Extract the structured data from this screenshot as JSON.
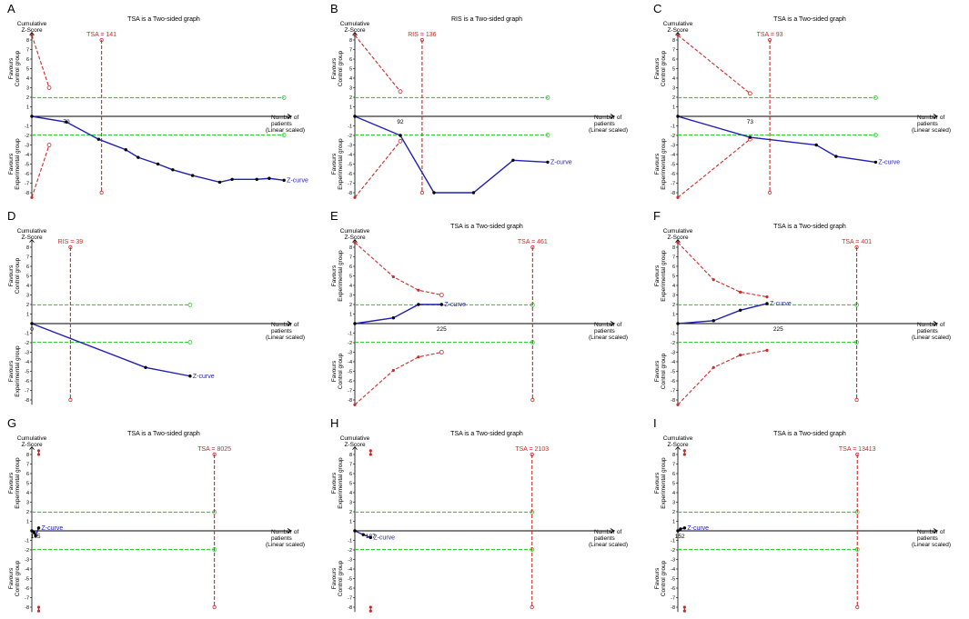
{
  "colors": {
    "axis": "#000000",
    "zcurve": "#1f1fb4",
    "boundary": "#cc2a2a",
    "threshold": "#2fcf2f",
    "label": "#000000",
    "zlabel": "#1f1fb4",
    "tsa_label": "#cc2a2a"
  },
  "common": {
    "y_axis_title_line1": "Cumulative",
    "y_axis_title_line2": "Z-Score",
    "x_axis_title_line1": "Number of",
    "x_axis_title_line2": "patients",
    "x_axis_title_line3": "(Linear scaled)",
    "zcurve_label": "Z-curve",
    "y_ticks": [
      "8",
      "7",
      "6",
      "5",
      "4",
      "3",
      "2",
      "1",
      "-1",
      "-2",
      "-3",
      "-4",
      "-5",
      "-6",
      "-7",
      "-8"
    ]
  },
  "chart_data": [
    {
      "panel": "A",
      "type": "line",
      "title": "TSA is a Two-sided graph",
      "upper_label": "Favours Control group",
      "lower_label": "Favours Experimental group",
      "x_max": 460,
      "x_tick": "70",
      "x_tick_value": 70,
      "boundary_value": 141,
      "boundary_label": "TSA = 141",
      "threshold": 1.96,
      "zcurve": [
        [
          0,
          0
        ],
        [
          70,
          -0.6
        ],
        [
          135,
          -2.4
        ],
        [
          190,
          -3.5
        ],
        [
          215,
          -4.3
        ],
        [
          255,
          -5.0
        ],
        [
          285,
          -5.6
        ],
        [
          325,
          -6.2
        ],
        [
          380,
          -6.9
        ],
        [
          405,
          -6.6
        ],
        [
          455,
          -6.6
        ],
        [
          480,
          -6.5
        ],
        [
          510,
          -6.7
        ]
      ],
      "z_end": [
        510,
        -6.7
      ],
      "upper_boundary": [
        [
          0,
          8.5
        ],
        [
          35,
          3.0
        ]
      ],
      "upper_open": [
        35,
        3.0
      ],
      "lower_boundary": [
        [
          0,
          -8.5
        ],
        [
          35,
          -3.0
        ]
      ],
      "lower_open": [
        35,
        -3.0
      ],
      "green_end_value": 510
    },
    {
      "panel": "B",
      "type": "line",
      "title": "RIS is a Two-sided graph",
      "upper_label": "Favours Control group",
      "lower_label": "Favours Experimental group",
      "x_max": 460,
      "x_tick": "92",
      "x_tick_value": 92,
      "boundary_value": 136,
      "boundary_label": "RIS = 136",
      "threshold": 1.96,
      "zcurve": [
        [
          0,
          0
        ],
        [
          92,
          -2.0
        ],
        [
          160,
          -8.0
        ],
        [
          240,
          -8.0
        ],
        [
          320,
          -4.6
        ],
        [
          390,
          -4.8
        ]
      ],
      "z_end": [
        390,
        -4.8
      ],
      "upper_boundary": [
        [
          0,
          8.5
        ],
        [
          92,
          2.6
        ]
      ],
      "upper_open": [
        92,
        2.6
      ],
      "lower_boundary": [
        [
          0,
          -8.5
        ],
        [
          92,
          -2.6
        ]
      ],
      "lower_open": [
        92,
        -2.6
      ],
      "green_end_value": 390
    },
    {
      "panel": "C",
      "type": "line",
      "title": "TSA is a Two-sided graph",
      "upper_label": "Favours Control group",
      "lower_label": "Favours Experimental group",
      "x_max": 230,
      "x_tick": "73",
      "x_tick_value": 73,
      "boundary_value": 93,
      "boundary_label": "TSA = 93",
      "threshold": 1.96,
      "zcurve": [
        [
          0,
          0
        ],
        [
          73,
          -2.2
        ],
        [
          140,
          -3.0
        ],
        [
          160,
          -4.2
        ],
        [
          200,
          -4.8
        ]
      ],
      "z_end": [
        200,
        -4.8
      ],
      "upper_boundary": [
        [
          0,
          8.5
        ],
        [
          73,
          2.4
        ]
      ],
      "upper_open": [
        73,
        2.4
      ],
      "lower_boundary": [
        [
          0,
          -8.5
        ],
        [
          73,
          -2.4
        ]
      ],
      "lower_open": [
        73,
        -2.4
      ],
      "green_end_value": 200
    },
    {
      "panel": "D",
      "type": "line",
      "title": "",
      "upper_label": "Favours Control group",
      "lower_label": "Favours Experimental group",
      "x_max": 230,
      "x_tick": "0",
      "x_tick_value": 0,
      "boundary_value": 39,
      "boundary_label": "RIS = 39",
      "threshold": 1.96,
      "zcurve": [
        [
          0,
          0
        ],
        [
          115,
          -4.6
        ],
        [
          160,
          -5.5
        ]
      ],
      "z_end": [
        160,
        -5.5
      ],
      "upper_boundary": [],
      "upper_open": null,
      "lower_boundary": [],
      "lower_open": null,
      "green_end_value": 160
    },
    {
      "panel": "E",
      "type": "line",
      "title": "TSA is a Two-sided graph",
      "upper_label": "Favours Experimental group",
      "lower_label": "Favours Control group",
      "x_max": 590,
      "x_tick": "225",
      "x_tick_value": 225,
      "boundary_value": 461,
      "boundary_label": "TSA = 461",
      "threshold": 1.96,
      "zcurve": [
        [
          0,
          0
        ],
        [
          100,
          0.6
        ],
        [
          165,
          2.0
        ],
        [
          225,
          2.0
        ]
      ],
      "z_end": [
        225,
        2.0
      ],
      "upper_boundary": [
        [
          0,
          8.5
        ],
        [
          100,
          4.9
        ],
        [
          165,
          3.5
        ],
        [
          225,
          3.0
        ]
      ],
      "upper_open": [
        225,
        3.0
      ],
      "lower_boundary": [
        [
          0,
          -8.5
        ],
        [
          100,
          -4.9
        ],
        [
          165,
          -3.5
        ],
        [
          225,
          -3.0
        ]
      ],
      "lower_open": [
        225,
        -3.0
      ],
      "green_end_value": 461
    },
    {
      "panel": "F",
      "type": "line",
      "title": "TSA is a Two-sided graph",
      "upper_label": "Favours Experimental group",
      "lower_label": "Favours Control group",
      "x_max": 510,
      "x_tick": "225",
      "x_tick_value": 225,
      "boundary_value": 401,
      "boundary_label": "TSA = 401",
      "threshold": 1.96,
      "zcurve": [
        [
          0,
          0
        ],
        [
          80,
          0.3
        ],
        [
          140,
          1.4
        ],
        [
          200,
          2.1
        ]
      ],
      "z_end": [
        200,
        2.1
      ],
      "upper_boundary": [
        [
          0,
          8.5
        ],
        [
          80,
          4.6
        ],
        [
          140,
          3.3
        ],
        [
          200,
          2.8
        ]
      ],
      "upper_open": null,
      "lower_boundary": [
        [
          0,
          -8.5
        ],
        [
          80,
          -4.6
        ],
        [
          140,
          -3.3
        ],
        [
          200,
          -2.8
        ]
      ],
      "lower_open": null,
      "green_end_value": 401
    },
    {
      "panel": "G",
      "type": "line",
      "title": "TSA is a Two-sided graph",
      "upper_label": "Favours Experimental group",
      "lower_label": "Favours Control group",
      "x_max": 10000,
      "x_tick": "165",
      "x_tick_value": 165,
      "boundary_value": 8025,
      "boundary_label": "TSA = 8025",
      "threshold": 1.96,
      "zcurve": [
        [
          0,
          0
        ],
        [
          100,
          -0.2
        ],
        [
          165,
          -0.5
        ],
        [
          300,
          0.3
        ]
      ],
      "z_end": [
        300,
        0.3
      ],
      "upper_boundary": [
        [
          300,
          8.4
        ],
        [
          300,
          8.0
        ]
      ],
      "upper_open": null,
      "lower_boundary": [
        [
          300,
          -8.0
        ],
        [
          300,
          -8.4
        ]
      ],
      "lower_open": null,
      "green_end_value": 8025
    },
    {
      "panel": "H",
      "type": "line",
      "title": "TSA is a Two-sided graph",
      "upper_label": "Favours Experimental group",
      "lower_label": "Favours Control group",
      "x_max": 2700,
      "x_tick": "187",
      "x_tick_value": 187,
      "boundary_value": 2103,
      "boundary_label": "TSA = 2103",
      "threshold": 1.96,
      "zcurve": [
        [
          0,
          0
        ],
        [
          100,
          -0.4
        ],
        [
          187,
          -0.7
        ]
      ],
      "z_end": [
        187,
        -0.7
      ],
      "upper_boundary": [
        [
          187,
          8.4
        ],
        [
          187,
          8.0
        ]
      ],
      "upper_open": null,
      "lower_boundary": [
        [
          187,
          -8.0
        ],
        [
          187,
          -8.4
        ]
      ],
      "lower_open": null,
      "green_end_value": 2103
    },
    {
      "panel": "I",
      "type": "line",
      "title": "TSA is a Two-sided graph",
      "upper_label": "Favours Experimental group",
      "lower_label": "Favours Control group",
      "x_max": 17000,
      "x_tick": "152",
      "x_tick_value": 152,
      "boundary_value": 13413,
      "boundary_label": "TSA = 13413",
      "threshold": 1.96,
      "zcurve": [
        [
          0,
          0
        ],
        [
          200,
          0.2
        ],
        [
          500,
          0.3
        ]
      ],
      "z_end": [
        500,
        0.3
      ],
      "upper_boundary": [
        [
          500,
          8.4
        ],
        [
          500,
          8.0
        ]
      ],
      "upper_open": null,
      "lower_boundary": [
        [
          500,
          -8.0
        ],
        [
          500,
          -8.4
        ]
      ],
      "lower_open": null,
      "green_end_value": 13413
    }
  ]
}
